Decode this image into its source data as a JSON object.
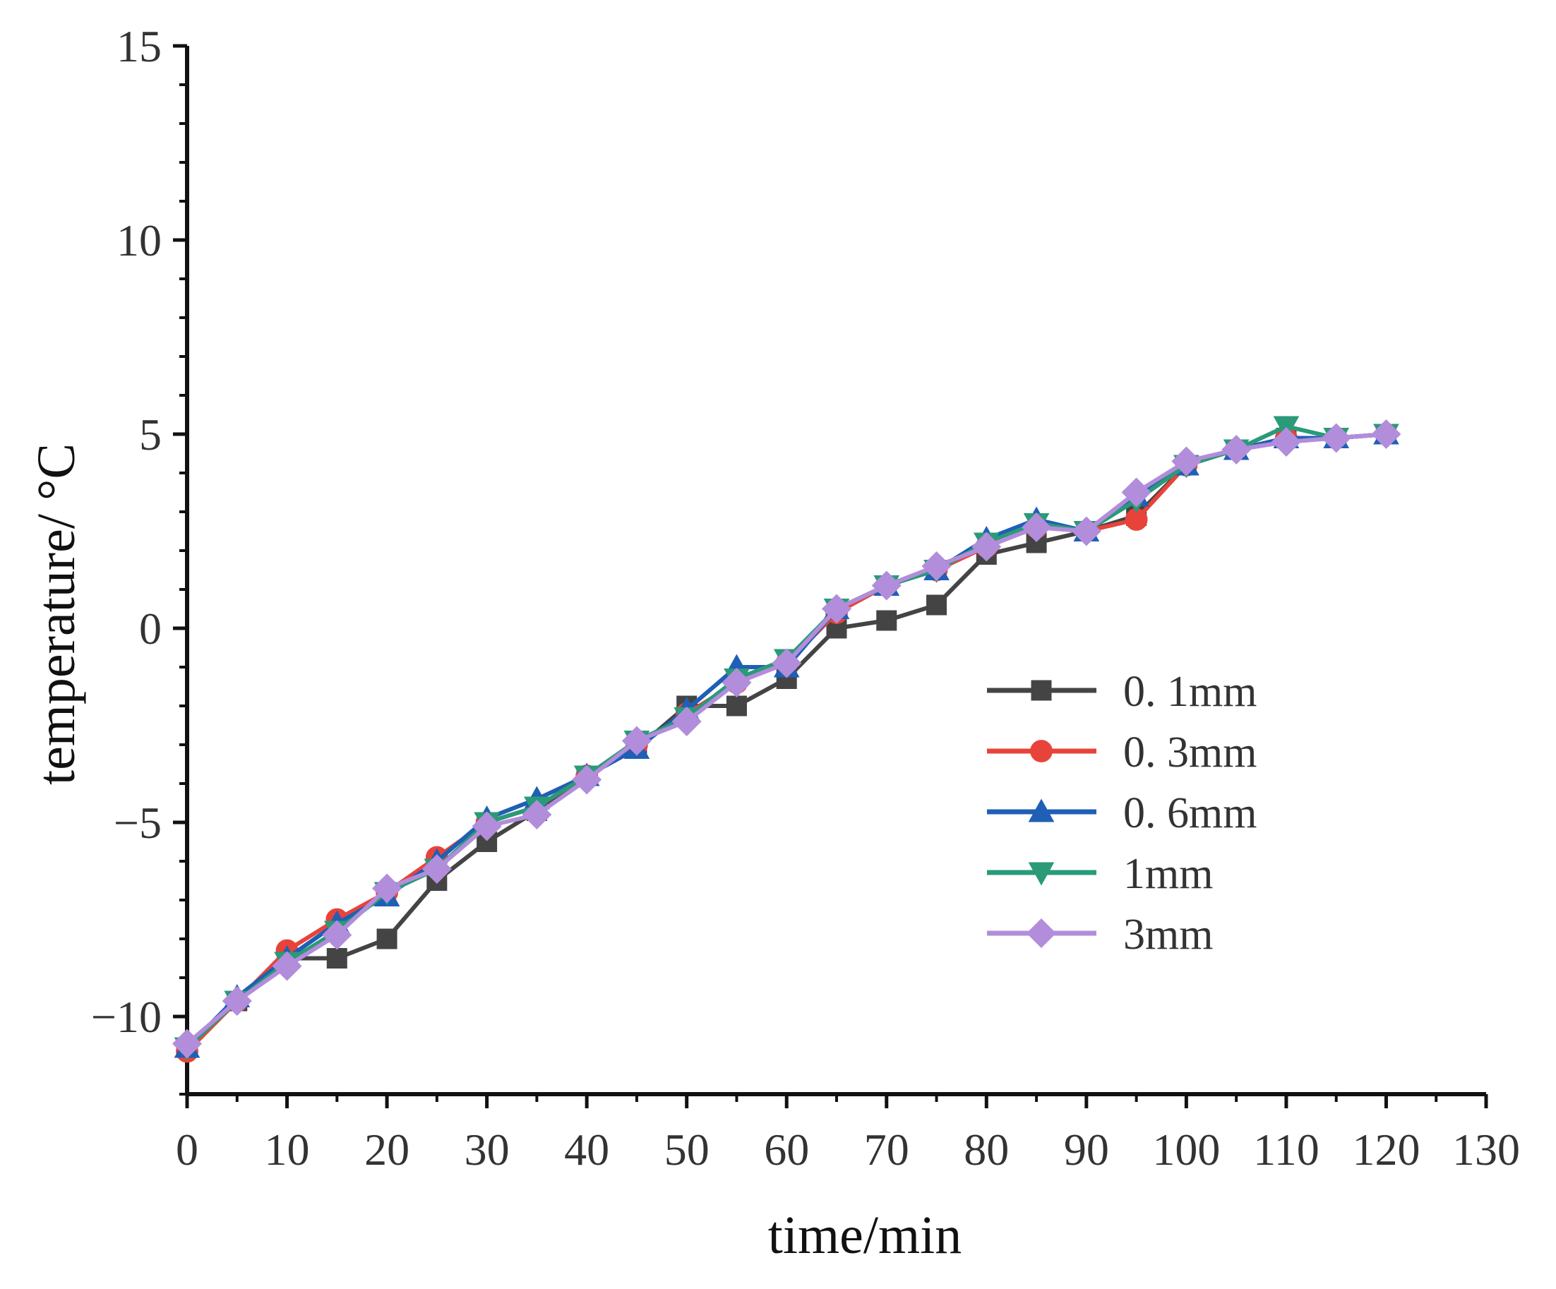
{
  "chart_data": {
    "type": "line",
    "title": "",
    "xlabel": "time/min",
    "ylabel": "temperature/ °C",
    "xlim": [
      0,
      130
    ],
    "ylim": [
      -12,
      15
    ],
    "xticks": [
      "0",
      "10",
      "20",
      "30",
      "40",
      "50",
      "60",
      "70",
      "80",
      "90",
      "100",
      "110",
      "120",
      "130"
    ],
    "yticks": [
      "-10",
      "-5",
      "0",
      "5",
      "10",
      "15"
    ],
    "grid": false,
    "legend_position": "center-right",
    "x": [
      0,
      5,
      10,
      15,
      20,
      25,
      30,
      35,
      40,
      45,
      50,
      55,
      60,
      65,
      70,
      75,
      80,
      85,
      90,
      95,
      100,
      105,
      110,
      115,
      120
    ],
    "series": [
      {
        "name": "0. 1mm",
        "color": "#444444",
        "marker": "square",
        "values": [
          -10.8,
          -9.6,
          -8.5,
          -8.5,
          -8.0,
          -6.5,
          -5.5,
          -4.7,
          -3.8,
          -3.1,
          -2.0,
          -2.0,
          -1.3,
          0.0,
          0.2,
          0.6,
          1.9,
          2.2,
          2.5,
          2.9,
          4.2,
          4.6,
          4.9,
          4.9,
          5.0
        ]
      },
      {
        "name": "0. 3mm",
        "color": "#e8433a",
        "marker": "circle",
        "values": [
          -10.9,
          -9.6,
          -8.3,
          -7.5,
          -6.8,
          -5.9,
          -5.0,
          -4.6,
          -3.8,
          -3.0,
          -2.2,
          -1.4,
          -0.9,
          0.4,
          1.1,
          1.5,
          2.1,
          2.6,
          2.5,
          2.8,
          4.2,
          4.6,
          4.9,
          4.9,
          5.0
        ]
      },
      {
        "name": "0. 6mm",
        "color": "#1f5fb5",
        "marker": "triangle-up",
        "values": [
          -10.8,
          -9.5,
          -8.5,
          -7.6,
          -6.9,
          -6.0,
          -4.9,
          -4.4,
          -3.8,
          -3.1,
          -2.1,
          -1.0,
          -1.0,
          0.5,
          1.1,
          1.5,
          2.3,
          2.8,
          2.5,
          3.4,
          4.2,
          4.6,
          4.9,
          4.9,
          5.0
        ]
      },
      {
        "name": "1mm",
        "color": "#2a9a78",
        "marker": "triangle-down",
        "values": [
          -10.8,
          -9.6,
          -8.6,
          -7.8,
          -6.8,
          -6.2,
          -5.0,
          -4.6,
          -3.8,
          -2.9,
          -2.3,
          -1.3,
          -0.8,
          0.5,
          1.1,
          1.5,
          2.2,
          2.7,
          2.5,
          3.3,
          4.2,
          4.6,
          5.2,
          4.9,
          5.0
        ]
      },
      {
        "name": "3mm",
        "color": "#b28ddb",
        "marker": "diamond",
        "values": [
          -10.7,
          -9.6,
          -8.7,
          -7.9,
          -6.7,
          -6.2,
          -5.1,
          -4.8,
          -3.9,
          -2.9,
          -2.4,
          -1.4,
          -0.9,
          0.5,
          1.1,
          1.6,
          2.1,
          2.6,
          2.5,
          3.5,
          4.3,
          4.6,
          4.8,
          4.9,
          5.0
        ]
      }
    ]
  }
}
